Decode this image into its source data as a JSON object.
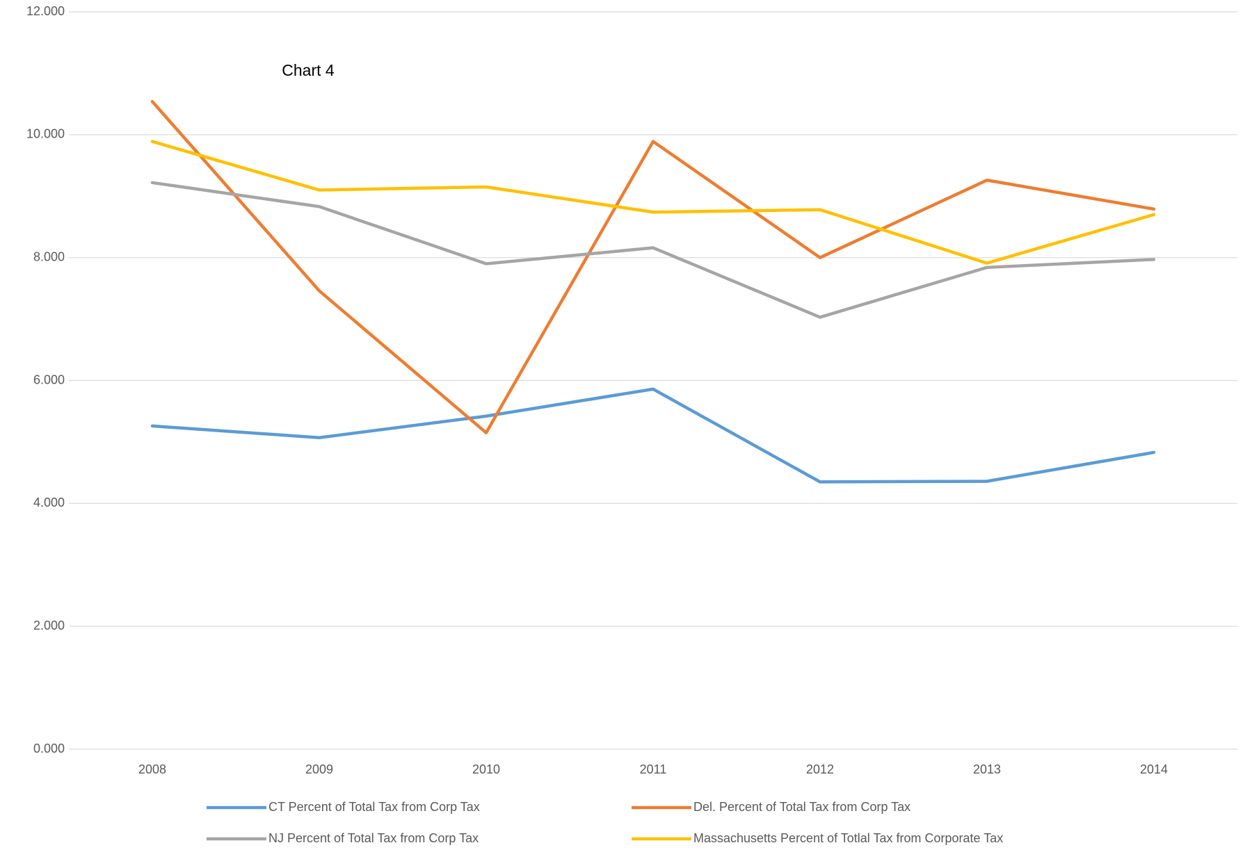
{
  "chart_data": {
    "type": "line",
    "title": "Chart 4",
    "categories": [
      "2008",
      "2009",
      "2010",
      "2011",
      "2012",
      "2013",
      "2014"
    ],
    "series": [
      {
        "name": "CT Percent of Total Tax from Corp Tax",
        "color": "#5b9bd5",
        "values": [
          5.26,
          5.07,
          5.42,
          5.86,
          4.35,
          4.36,
          4.83
        ]
      },
      {
        "name": "Del. Percent of Total Tax  from Corp Tax",
        "color": "#ed7d31",
        "values": [
          10.54,
          7.46,
          5.15,
          9.89,
          8.0,
          9.26,
          8.79
        ]
      },
      {
        "name": "NJ Percent of Total Tax from Corp Tax",
        "color": "#a5a5a5",
        "values": [
          9.22,
          8.83,
          7.9,
          8.16,
          7.03,
          7.84,
          7.97
        ]
      },
      {
        "name": "Massachusetts Percent of Totlal Tax from Corporate Tax",
        "color": "#ffc000",
        "values": [
          9.89,
          9.1,
          9.15,
          8.74,
          8.78,
          7.91,
          8.7
        ]
      }
    ],
    "ylim": [
      0,
      12
    ],
    "yticks": [
      {
        "value": 0,
        "label": "0.000"
      },
      {
        "value": 2,
        "label": "2.000"
      },
      {
        "value": 4,
        "label": "4.000"
      },
      {
        "value": 6,
        "label": "6.000"
      },
      {
        "value": 8,
        "label": "8.000"
      },
      {
        "value": 10,
        "label": "10.000"
      },
      {
        "value": 12,
        "label": "12.000"
      }
    ],
    "grid": true,
    "legend": "bottom"
  }
}
